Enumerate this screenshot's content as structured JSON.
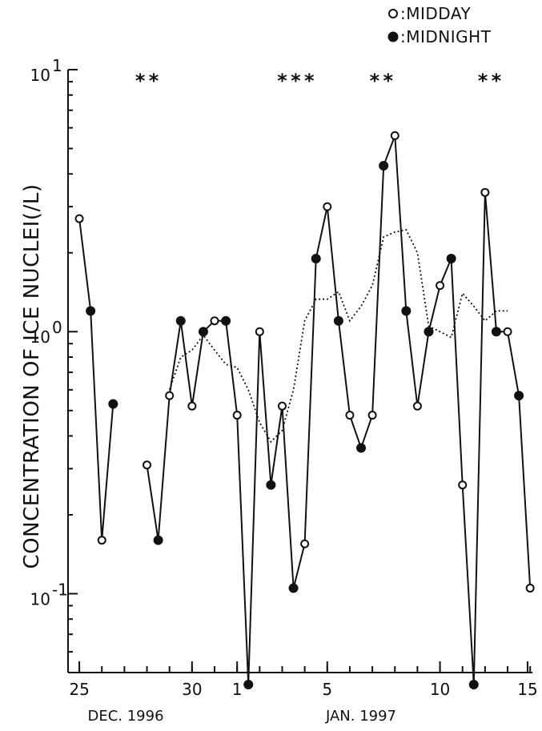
{
  "chart_data": {
    "type": "line",
    "ylabel": "CONCENTRATION OF ICE NUCLEI(/L)",
    "yscale": "log",
    "ylim": [
      0.05,
      10
    ],
    "y_ticks": [
      {
        "value": 0.1,
        "base": "10",
        "exp": "-1"
      },
      {
        "value": 1,
        "base": "10",
        "exp": "0"
      },
      {
        "value": 10,
        "base": "10",
        "exp": "1"
      }
    ],
    "xlim": [
      24.5,
      45.1
    ],
    "x_ticks": [
      {
        "value": 25,
        "label": "25"
      },
      {
        "value": 30,
        "label": "30"
      },
      {
        "value": 32,
        "label": "1"
      },
      {
        "value": 36,
        "label": "5"
      },
      {
        "value": 41,
        "label": "10"
      },
      {
        "value": 46,
        "label": "15"
      }
    ],
    "date_labels": [
      "DEC. 1996",
      "JAN. 1997"
    ],
    "legend": [
      {
        "symbol": "open",
        "label": ":MIDDAY"
      },
      {
        "symbol": "filled",
        "label": ":MIDNIGHT"
      }
    ],
    "series": [
      {
        "name": "MIDDAY/MIDNIGHT",
        "segments": [
          [
            [
              25.0,
              2.7,
              "o"
            ],
            [
              25.5,
              1.2,
              "f"
            ],
            [
              26.0,
              0.16,
              "o"
            ],
            [
              26.5,
              0.53,
              "f"
            ]
          ],
          [
            [
              28.0,
              0.31,
              "o"
            ],
            [
              28.5,
              0.16,
              "f"
            ],
            [
              29.0,
              0.57,
              "o"
            ],
            [
              29.5,
              1.1,
              "f"
            ],
            [
              30.0,
              0.52,
              "o"
            ],
            [
              30.5,
              1.0,
              "f"
            ],
            [
              31.0,
              1.1,
              "o"
            ],
            [
              31.5,
              1.1,
              "f"
            ],
            [
              32.0,
              0.48,
              "o"
            ],
            [
              32.5,
              0.045,
              "f"
            ],
            [
              33.0,
              1.0,
              "o"
            ],
            [
              33.5,
              0.26,
              "f"
            ],
            [
              34.0,
              0.52,
              "o"
            ],
            [
              34.5,
              0.105,
              "f"
            ],
            [
              35.0,
              0.155,
              "o"
            ],
            [
              35.5,
              1.9,
              "f"
            ],
            [
              36.0,
              3.0,
              "o"
            ],
            [
              36.5,
              1.1,
              "f"
            ],
            [
              37.0,
              0.48,
              "o"
            ],
            [
              37.5,
              0.36,
              "f"
            ],
            [
              38.0,
              0.48,
              "o"
            ],
            [
              38.5,
              4.3,
              "f"
            ],
            [
              39.0,
              5.6,
              "o"
            ],
            [
              39.5,
              1.2,
              "f"
            ],
            [
              40.0,
              0.52,
              "o"
            ],
            [
              40.5,
              1.0,
              "f"
            ],
            [
              41.0,
              1.5,
              "o"
            ],
            [
              41.5,
              1.9,
              "f"
            ],
            [
              42.0,
              0.26,
              "o"
            ],
            [
              42.5,
              0.045,
              "f"
            ],
            [
              43.0,
              3.4,
              "o"
            ],
            [
              43.5,
              1.0,
              "f"
            ],
            [
              44.0,
              1.0,
              "o"
            ],
            [
              44.5,
              0.57,
              "f"
            ],
            [
              45.0,
              0.105,
              "o"
            ]
          ]
        ]
      }
    ],
    "running_mean": {
      "style": "dotted",
      "points": [
        [
          29.0,
          0.6
        ],
        [
          29.5,
          0.8
        ],
        [
          30.0,
          0.85
        ],
        [
          30.5,
          0.97
        ],
        [
          31.0,
          0.85
        ],
        [
          31.5,
          0.75
        ],
        [
          32.0,
          0.73
        ],
        [
          32.5,
          0.6
        ],
        [
          33.0,
          0.45
        ],
        [
          33.5,
          0.38
        ],
        [
          34.0,
          0.42
        ],
        [
          34.5,
          0.6
        ],
        [
          35.0,
          1.1
        ],
        [
          35.5,
          1.33
        ],
        [
          36.0,
          1.33
        ],
        [
          36.5,
          1.42
        ],
        [
          37.0,
          1.1
        ],
        [
          37.5,
          1.25
        ],
        [
          38.0,
          1.5
        ],
        [
          38.5,
          2.3
        ],
        [
          39.0,
          2.4
        ],
        [
          39.5,
          2.45
        ],
        [
          40.0,
          2.0
        ],
        [
          40.5,
          1.05
        ],
        [
          41.0,
          1.0
        ],
        [
          41.5,
          0.95
        ],
        [
          42.0,
          1.4
        ],
        [
          42.5,
          1.25
        ],
        [
          43.0,
          1.1
        ],
        [
          43.5,
          1.2
        ],
        [
          44.0,
          1.2
        ]
      ]
    },
    "asterisk_groups": [
      {
        "x": [
          27.7,
          28.3
        ],
        "label": "* *"
      },
      {
        "x": [
          34.0,
          34.6,
          35.2
        ],
        "label": "* * *"
      },
      {
        "x": [
          38.1,
          38.7
        ],
        "label": "* *"
      },
      {
        "x": [
          42.9,
          43.5
        ],
        "label": "* *"
      }
    ]
  }
}
